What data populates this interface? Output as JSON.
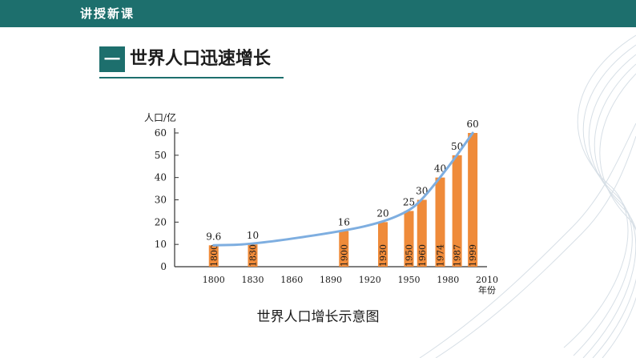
{
  "header": {
    "label": "讲授新课"
  },
  "section": {
    "number": "一",
    "title": "世界人口迅速增长"
  },
  "caption": "世界人口增长示意图",
  "colors": {
    "brand": "#1d6f6d",
    "bar": "#ef8b3a",
    "line": "#7eaee0"
  },
  "chart_data": {
    "type": "bar",
    "title": "",
    "xlabel": "年份",
    "ylabel": "人口/亿",
    "ylim": [
      0,
      60
    ],
    "yticks": [
      "0",
      "10",
      "20",
      "30",
      "40",
      "50",
      "60"
    ],
    "xlim": [
      1770,
      2010
    ],
    "xticks": [
      "1800",
      "1830",
      "1860",
      "1890",
      "1920",
      "1950",
      "1980",
      "2010"
    ],
    "bars": [
      {
        "year": "1800",
        "value": 9.6,
        "label": "9.6"
      },
      {
        "year": "1830",
        "value": 10,
        "label": "10"
      },
      {
        "year": "1900",
        "value": 16,
        "label": "16"
      },
      {
        "year": "1930",
        "value": 20,
        "label": "20"
      },
      {
        "year": "1950",
        "value": 25,
        "label": "25"
      },
      {
        "year": "1960",
        "value": 30,
        "label": "30"
      },
      {
        "year": "1974",
        "value": 40,
        "label": "40"
      },
      {
        "year": "1987",
        "value": 50,
        "label": "50"
      },
      {
        "year": "1999",
        "value": 60,
        "label": "60"
      }
    ],
    "trend_line": true
  }
}
